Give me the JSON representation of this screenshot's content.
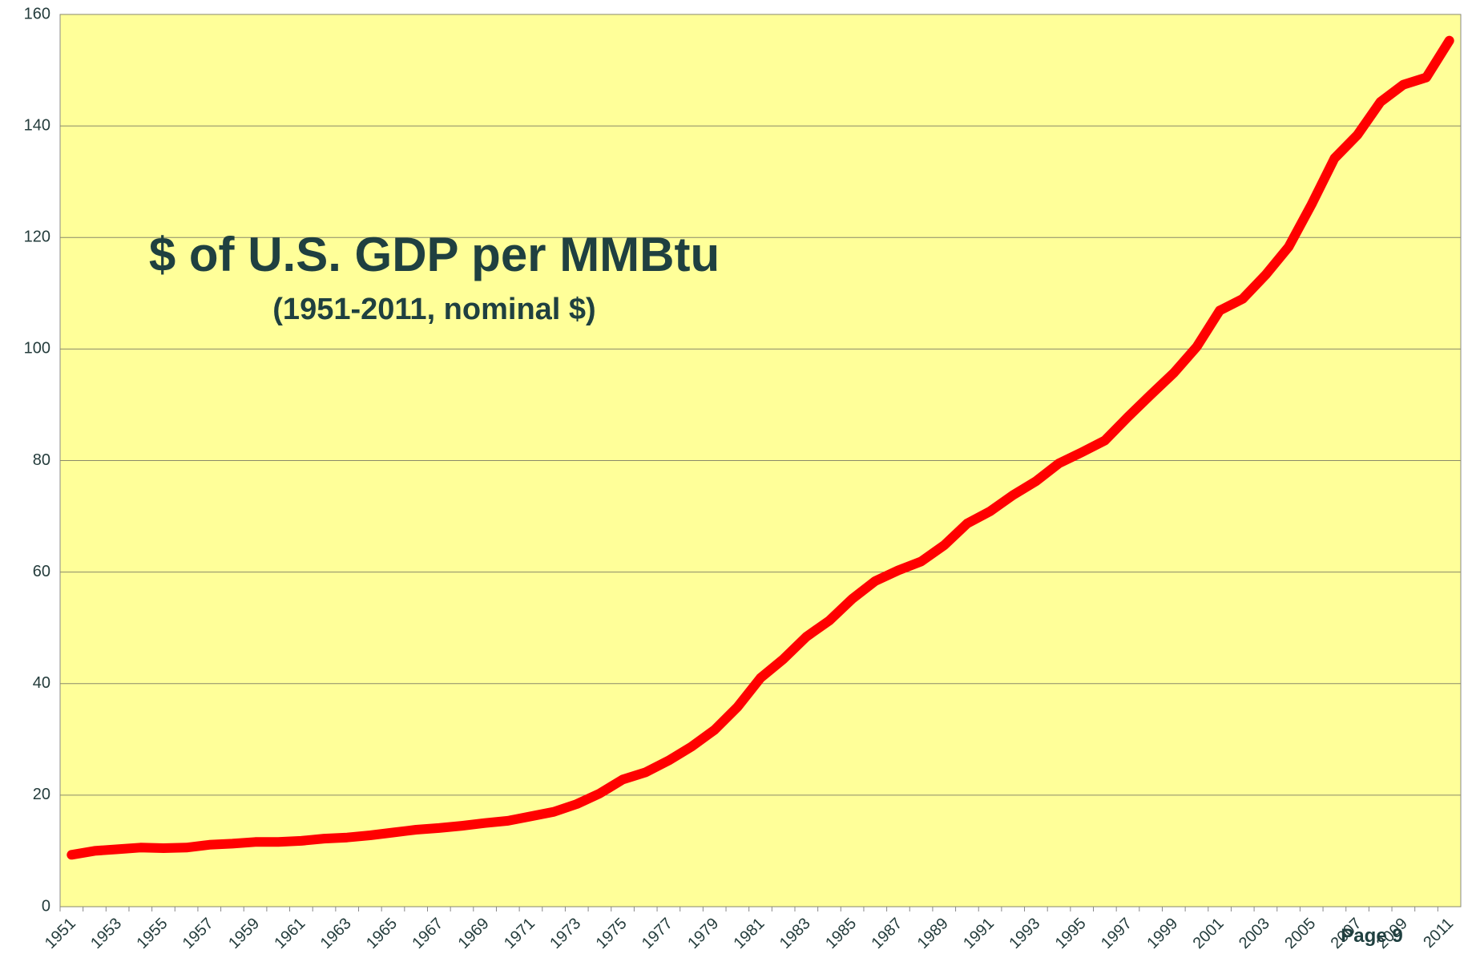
{
  "chart_data": {
    "type": "line",
    "title": "$ of U.S. GDP per MMBtu",
    "subtitle": "(1951-2011, nominal $)",
    "annotation": "Page 9",
    "categories": [
      "1951",
      null,
      "1953",
      null,
      "1955",
      null,
      "1957",
      null,
      "1959",
      null,
      "1961",
      null,
      "1963",
      null,
      "1965",
      null,
      "1967",
      null,
      "1969",
      null,
      "1971",
      null,
      "1973",
      null,
      "1975",
      null,
      "1977",
      null,
      "1979",
      null,
      "1981",
      null,
      "1983",
      null,
      "1985",
      null,
      "1987",
      null,
      "1989",
      null,
      "1991",
      null,
      "1993",
      null,
      "1995",
      null,
      "1997",
      null,
      "1999",
      null,
      "2001",
      null,
      "2003",
      null,
      "2005",
      null,
      "2007",
      null,
      "2009",
      null,
      "2011"
    ],
    "series": [
      {
        "name": "$ of U.S. GDP per MMBtu",
        "color": "#ff0000",
        "values": [
          9.3,
          10.0,
          10.3,
          10.6,
          10.5,
          10.6,
          11.1,
          11.3,
          11.6,
          11.6,
          11.8,
          12.2,
          12.4,
          12.8,
          13.3,
          13.8,
          14.1,
          14.5,
          15.0,
          15.4,
          16.2,
          17.0,
          18.4,
          20.3,
          22.8,
          24.1,
          26.2,
          28.7,
          31.7,
          35.8,
          41.0,
          44.4,
          48.4,
          51.3,
          55.2,
          58.4,
          60.3,
          61.9,
          64.8,
          68.7,
          70.9,
          73.8,
          76.3,
          79.5,
          81.5,
          83.6,
          87.8,
          91.8,
          95.7,
          100.4,
          106.9,
          109.0,
          113.3,
          118.3,
          125.9,
          134.2,
          138.4,
          144.3,
          147.4,
          148.7,
          155.3
        ]
      }
    ],
    "ylim": [
      0,
      160
    ],
    "yticks": [
      0,
      20,
      40,
      60,
      80,
      100,
      120,
      140,
      160
    ],
    "grid": true,
    "background": "#ffff99"
  }
}
